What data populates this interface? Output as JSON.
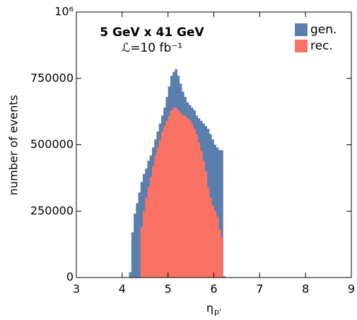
{
  "chart_data": {
    "type": "histogram",
    "title": "5 GeV x 41 GeV",
    "subtitle": "ℒ=10 fb⁻¹",
    "y_label": "number of events",
    "x_label": {
      "symbol": "η",
      "subscript": "p'"
    },
    "bins": [
      4.15,
      4.2,
      4.25,
      4.3,
      4.35,
      4.4,
      4.45,
      4.5,
      4.55,
      4.6,
      4.65,
      4.7,
      4.75,
      4.8,
      4.85,
      4.9,
      4.95,
      5.0,
      5.05,
      5.1,
      5.15,
      5.2,
      5.25,
      5.3,
      5.35,
      5.4,
      5.45,
      5.5,
      5.55,
      5.6,
      5.65,
      5.7,
      5.75,
      5.8,
      5.85,
      5.9,
      5.95,
      6.0,
      6.05,
      6.1,
      6.15,
      6.2,
      6.25
    ],
    "series": [
      {
        "name": "gen.",
        "color": "#5a7fad",
        "values": [
          20000,
          170000,
          240000,
          280000,
          320000,
          360000,
          390000,
          410000,
          440000,
          460000,
          490000,
          520000,
          550000,
          580000,
          610000,
          640000,
          680000,
          720000,
          760000,
          775000,
          785000,
          760000,
          730000,
          700000,
          680000,
          660000,
          650000,
          640000,
          630000,
          610000,
          600000,
          590000,
          580000,
          570000,
          560000,
          540000,
          520000,
          500000,
          490000,
          480000,
          480000,
          5000
        ]
      },
      {
        "name": "rec.",
        "color": "#fa7264",
        "values": [
          0,
          0,
          0,
          0,
          0,
          190000,
          250000,
          300000,
          340000,
          380000,
          420000,
          460000,
          490000,
          520000,
          550000,
          570000,
          590000,
          610000,
          630000,
          640000,
          640000,
          630000,
          620000,
          610000,
          610000,
          600000,
          590000,
          580000,
          560000,
          540000,
          510000,
          480000,
          440000,
          400000,
          340000,
          300000,
          270000,
          250000,
          230000,
          180000,
          150000,
          0
        ]
      }
    ],
    "xlim": [
      3,
      9
    ],
    "xticks": [
      3,
      4,
      5,
      6,
      7,
      8,
      9
    ],
    "ylim": [
      0,
      1000000
    ],
    "yticks": [
      0,
      250000,
      500000,
      750000,
      {
        "value": 1000000,
        "label": "10⁶"
      }
    ],
    "legend": "top-right"
  }
}
